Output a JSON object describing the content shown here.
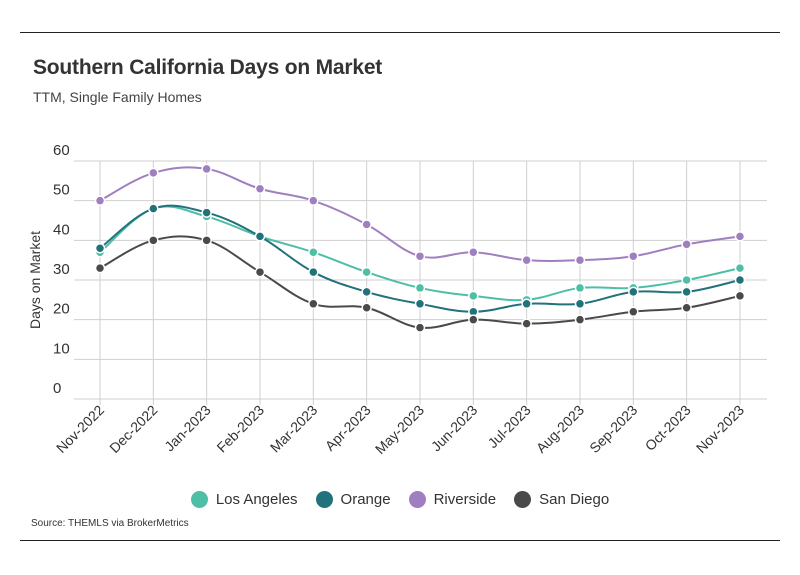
{
  "header": {
    "title": "Southern California Days on Market",
    "subtitle": "TTM, Single Family Homes"
  },
  "footer": {
    "source": "Source:  THEMLS via BrokerMetrics"
  },
  "chart_data": {
    "type": "line",
    "title": "Southern California Days on Market",
    "subtitle": "TTM, Single Family Homes",
    "xlabel": "",
    "ylabel": "Days on Market",
    "ylim": [
      0,
      60
    ],
    "yticks": [
      0,
      10,
      20,
      30,
      40,
      50,
      60
    ],
    "grid": true,
    "legend_position": "bottom",
    "categories": [
      "Nov-2022",
      "Dec-2022",
      "Jan-2023",
      "Feb-2023",
      "Mar-2023",
      "Apr-2023",
      "May-2023",
      "Jun-2023",
      "Jul-2023",
      "Aug-2023",
      "Sep-2023",
      "Oct-2023",
      "Nov-2023"
    ],
    "series": [
      {
        "name": "Los Angeles",
        "color": "#4dbfa6",
        "values": [
          37,
          48,
          46,
          41,
          37,
          32,
          28,
          26,
          25,
          28,
          28,
          30,
          33
        ]
      },
      {
        "name": "Orange",
        "color": "#22727b",
        "values": [
          38,
          48,
          47,
          41,
          32,
          27,
          24,
          22,
          24,
          24,
          27,
          27,
          30
        ]
      },
      {
        "name": "Riverside",
        "color": "#a07fc1",
        "values": [
          50,
          57,
          58,
          53,
          50,
          44,
          36,
          37,
          35,
          35,
          36,
          39,
          41
        ]
      },
      {
        "name": "San Diego",
        "color": "#4a4a4a",
        "values": [
          33,
          40,
          40,
          32,
          24,
          23,
          18,
          20,
          19,
          20,
          22,
          23,
          26
        ]
      }
    ]
  }
}
